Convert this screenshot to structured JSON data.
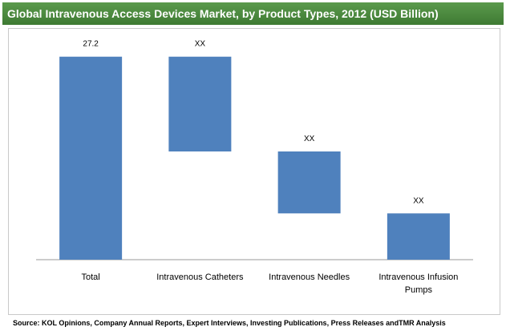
{
  "title": "Global Intravenous Access Devices Market, by Product Types, 2012 (USD Billion)",
  "source": "Source: KOL Opinions, Company Annual Reports, Expert Interviews, Investing Publications, Press Releases andTMR Analysis",
  "colors": {
    "bar": "#4f81bd",
    "title_bg": "#4a8a3d"
  },
  "chart_data": {
    "type": "bar",
    "subtype": "waterfall",
    "categories": [
      "Total",
      "Intravenous Catheters",
      "Intravenous Needles",
      "Intravenous Infusion Pumps"
    ],
    "category_lines": [
      [
        "Total"
      ],
      [
        "Intravenous Catheters"
      ],
      [
        "Intravenous Needles"
      ],
      [
        "Intravenous Infusion",
        "Pumps"
      ]
    ],
    "value_labels": [
      "27.2",
      "XX",
      "XX",
      "XX"
    ],
    "ranges": [
      [
        0,
        27.2
      ],
      [
        14.5,
        27.2
      ],
      [
        6.2,
        14.5
      ],
      [
        0,
        6.2
      ]
    ],
    "ylim": [
      0,
      30.5
    ],
    "grid": false,
    "legend": "none"
  }
}
